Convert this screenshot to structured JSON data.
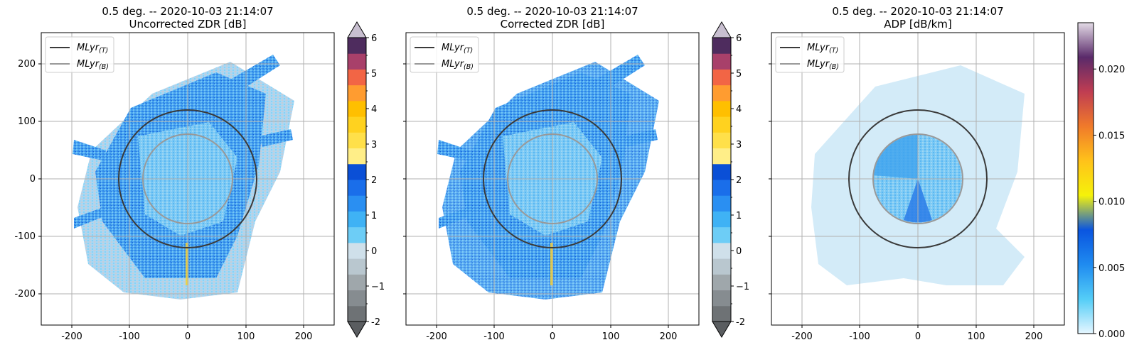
{
  "chart_data": [
    {
      "type": "heatmap",
      "title": "0.5 deg. -- 2020-10-03 21:14:07",
      "subtitle": "Uncorrected ZDR [dB]",
      "xticks": [
        -200,
        -100,
        0,
        100,
        200
      ],
      "yticks": [
        -200,
        -100,
        0,
        100,
        200
      ],
      "xlim": [
        -255,
        255
      ],
      "ylim": [
        -255,
        255
      ],
      "grid": true,
      "legend_position": "upper-left",
      "legend": [
        {
          "label": "MLyr",
          "sub": "(T)",
          "color": "#3a3a3a"
        },
        {
          "label": "MLyr",
          "sub": "(B)",
          "color": "#999999"
        }
      ],
      "rings": [
        {
          "name": "MLyr (T)",
          "radius": 120,
          "color": "#3a3a3a"
        },
        {
          "name": "MLyr (B)",
          "radius": 78,
          "color": "#999999"
        }
      ],
      "colorbar": {
        "ticks": [
          "-2",
          "−1",
          "0",
          "1",
          "2",
          "3",
          "4",
          "5",
          "6"
        ],
        "range": [
          -2,
          6
        ],
        "extend": "both",
        "colors": [
          "#6e7275",
          "#868c90",
          "#9fa7ab",
          "#b9c7cf",
          "#cfe0ea",
          "#6dcdf6",
          "#3fb2f5",
          "#2a8ff2",
          "#1a6eea",
          "#0a4fd6",
          "#ffee88",
          "#ffe04a",
          "#ffd21f",
          "#ffbf00",
          "#ff9c30",
          "#f26545",
          "#a8406a",
          "#4e2c5e"
        ],
        "under_color": "#5a5d60",
        "over_color": "#c8bfd0"
      }
    },
    {
      "type": "heatmap",
      "title": "0.5 deg. -- 2020-10-03 21:14:07",
      "subtitle": "Corrected ZDR [dB]",
      "xticks": [
        -200,
        -100,
        0,
        100,
        200
      ],
      "xlim": [
        -255,
        255
      ],
      "ylim": [
        -255,
        255
      ],
      "grid": true,
      "legend_position": "upper-left",
      "legend": [
        {
          "label": "MLyr",
          "sub": "(T)",
          "color": "#3a3a3a"
        },
        {
          "label": "MLyr",
          "sub": "(B)",
          "color": "#999999"
        }
      ],
      "rings": [
        {
          "name": "MLyr (T)",
          "radius": 120,
          "color": "#3a3a3a"
        },
        {
          "name": "MLyr (B)",
          "radius": 78,
          "color": "#999999"
        }
      ],
      "colorbar": {
        "ticks": [
          "-2",
          "−1",
          "0",
          "1",
          "2",
          "3",
          "4",
          "5",
          "6"
        ],
        "range": [
          -2,
          6
        ],
        "extend": "both",
        "colors": [
          "#6e7275",
          "#868c90",
          "#9fa7ab",
          "#b9c7cf",
          "#cfe0ea",
          "#6dcdf6",
          "#3fb2f5",
          "#2a8ff2",
          "#1a6eea",
          "#0a4fd6",
          "#ffee88",
          "#ffe04a",
          "#ffd21f",
          "#ffbf00",
          "#ff9c30",
          "#f26545",
          "#a8406a",
          "#4e2c5e"
        ],
        "under_color": "#5a5d60",
        "over_color": "#c8bfd0"
      }
    },
    {
      "type": "heatmap",
      "title": "0.5 deg. -- 2020-10-03 21:14:07",
      "subtitle": "ADP [dB/km]",
      "xticks": [
        -200,
        -100,
        0,
        100,
        200
      ],
      "xlim": [
        -255,
        255
      ],
      "ylim": [
        -255,
        255
      ],
      "grid": true,
      "legend_position": "upper-left",
      "legend": [
        {
          "label": "MLyr",
          "sub": "(T)",
          "color": "#3a3a3a"
        },
        {
          "label": "MLyr",
          "sub": "(B)",
          "color": "#999999"
        }
      ],
      "rings": [
        {
          "name": "MLyr (T)",
          "radius": 120,
          "color": "#3a3a3a"
        },
        {
          "name": "MLyr (B)",
          "radius": 78,
          "color": "#999999"
        }
      ],
      "colorbar": {
        "ticks": [
          "0.000",
          "0.005",
          "0.010",
          "0.015",
          "0.020"
        ],
        "range": [
          0,
          0.0235
        ],
        "extend": "neither",
        "gradient": [
          "#e6f6ff",
          "#54cdf7",
          "#1f8bf0",
          "#0a55e0",
          "#f5f20a",
          "#ffc21a",
          "#f07a2a",
          "#c03d52",
          "#5a2a6a",
          "#e3dbe6"
        ]
      }
    }
  ]
}
